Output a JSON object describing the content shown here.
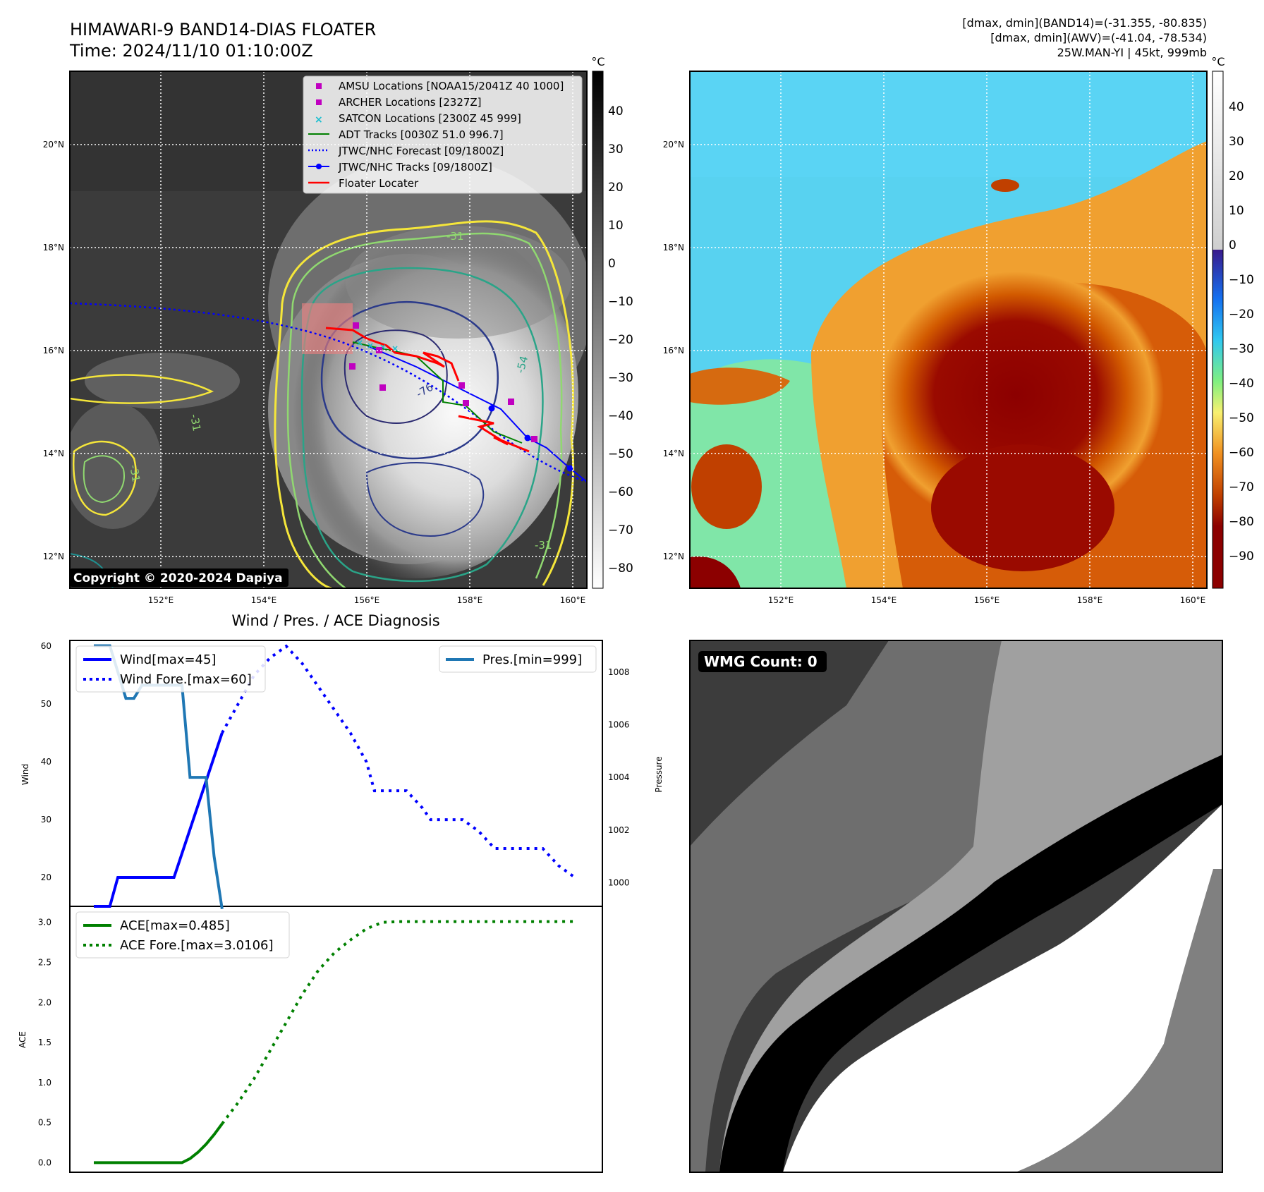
{
  "header": {
    "title": "HIMAWARI-9 BAND14-DIAS FLOATER",
    "time": "Time: 2024/11/10 01:10:00Z",
    "info_line1": "[dmax, dmin](BAND14)=(-31.355, -80.835)",
    "info_line2": "[dmax, dmin](AWV)=(-41.04, -78.534)",
    "info_line3": "25W.MAN-YI | 45kt, 999mb"
  },
  "copyright": "Copyright © 2020-2024 Dapiya",
  "unit": "°C",
  "map": {
    "lon_ticks": [
      "152°E",
      "154°E",
      "156°E",
      "158°E",
      "160°E"
    ],
    "lat_ticks": [
      "20°N",
      "18°N",
      "16°N",
      "14°N",
      "12°N"
    ],
    "contour_labels": [
      "-31",
      "-54",
      "-76",
      "-31",
      "-31",
      "-31"
    ]
  },
  "colorbar_left": {
    "ticks": [
      "40",
      "30",
      "20",
      "10",
      "0",
      "−10",
      "−20",
      "−30",
      "−40",
      "−50",
      "−60",
      "−70",
      "−80"
    ]
  },
  "colorbar_right": {
    "ticks": [
      "40",
      "30",
      "20",
      "10",
      "0",
      "−10",
      "−20",
      "−30",
      "−40",
      "−50",
      "−60",
      "−70",
      "−80",
      "−90"
    ]
  },
  "legend": {
    "items": [
      {
        "label": "AMSU Locations [NOAA15/2041Z 40 1000]",
        "color": "#c000c0"
      },
      {
        "label": "ARCHER Locations [2327Z]",
        "color": "#c000c0"
      },
      {
        "label": "SATCON Locations [2300Z 45 999]",
        "color": "#17becf"
      },
      {
        "label": "ADT Tracks [0030Z 51.0 996.7]",
        "color": "#008000"
      },
      {
        "label": "JTWC/NHC Forecast [09/1800Z]",
        "color": "#0000ff"
      },
      {
        "label": "JTWC/NHC Tracks [09/1800Z]",
        "color": "#0000ff"
      },
      {
        "label": "Floater Locater",
        "color": "#ff0000"
      }
    ]
  },
  "wmg": {
    "label": "WMG Count: 0"
  },
  "chart_data": [
    {
      "type": "line",
      "title": "Wind / Pres. / ACE Diagnosis",
      "ylabel": "Wind",
      "ylim": [
        15,
        61
      ],
      "yticks": [
        20,
        30,
        40,
        50,
        60
      ],
      "x": [
        0,
        2,
        3,
        5,
        10,
        16
      ],
      "series": [
        {
          "name": "Wind[max=45]",
          "color": "#0000ff",
          "style": "solid",
          "x": [
            0,
            2,
            3,
            5,
            10,
            16
          ],
          "values": [
            15,
            15,
            20,
            20,
            20,
            45
          ]
        },
        {
          "name": "Wind Fore.[max=60]",
          "color": "#0000ff",
          "style": "dotted",
          "x": [
            16,
            18,
            20,
            22,
            24,
            26,
            28,
            30,
            32,
            34,
            35,
            37,
            39,
            41,
            42,
            44,
            46,
            48,
            50,
            52,
            54,
            56,
            58,
            60
          ],
          "values": [
            45,
            50,
            55,
            58,
            60,
            57,
            53,
            49,
            45,
            40,
            35,
            35,
            35,
            32,
            30,
            30,
            30,
            28,
            25,
            25,
            25,
            25,
            22,
            20
          ]
        }
      ],
      "legend": [
        "Wind[max=45]",
        "Wind Fore.[max=60]"
      ]
    },
    {
      "type": "line",
      "ylabel": "Pressure",
      "ylim": [
        999.1,
        1009.2
      ],
      "yticks": [
        1000,
        1002,
        1004,
        1006,
        1008
      ],
      "series": [
        {
          "name": "Pres.[min=999]",
          "color": "#1f77b4",
          "style": "solid",
          "x": [
            0,
            2,
            4,
            5,
            6,
            7,
            8,
            9,
            10,
            11,
            12,
            14,
            15,
            16
          ],
          "values": [
            1009,
            1009,
            1007,
            1007,
            1007.5,
            1007.5,
            1007.5,
            1007.5,
            1007.5,
            1007.5,
            1004,
            1004,
            1001,
            999
          ]
        }
      ],
      "legend": [
        "Pres.[min=999]"
      ]
    },
    {
      "type": "line",
      "ylabel": "ACE",
      "ylim": [
        -0.12,
        3.2
      ],
      "yticks": [
        0.0,
        0.5,
        1.0,
        1.5,
        2.0,
        2.5,
        3.0
      ],
      "series": [
        {
          "name": "ACE[max=0.485]",
          "color": "#008000",
          "style": "solid",
          "x": [
            0,
            10,
            11,
            12,
            13,
            14,
            15,
            16
          ],
          "values": [
            0,
            0,
            0,
            0.05,
            0.13,
            0.23,
            0.35,
            0.485
          ]
        },
        {
          "name": "ACE Fore.[max=3.0106]",
          "color": "#008000",
          "style": "dotted",
          "x": [
            16,
            18,
            20,
            22,
            24,
            26,
            28,
            30,
            32,
            34,
            36,
            38,
            40,
            42,
            44,
            46,
            48,
            50,
            52,
            54,
            56,
            58,
            60
          ],
          "values": [
            0.485,
            0.75,
            1.05,
            1.4,
            1.75,
            2.1,
            2.4,
            2.62,
            2.78,
            2.92,
            3.0,
            3.01,
            3.01,
            3.01,
            3.01,
            3.01,
            3.01,
            3.01,
            3.01,
            3.01,
            3.01,
            3.01,
            3.0106
          ]
        }
      ],
      "legend": [
        "ACE[max=0.485]",
        "ACE Fore.[max=3.0106]"
      ]
    }
  ]
}
